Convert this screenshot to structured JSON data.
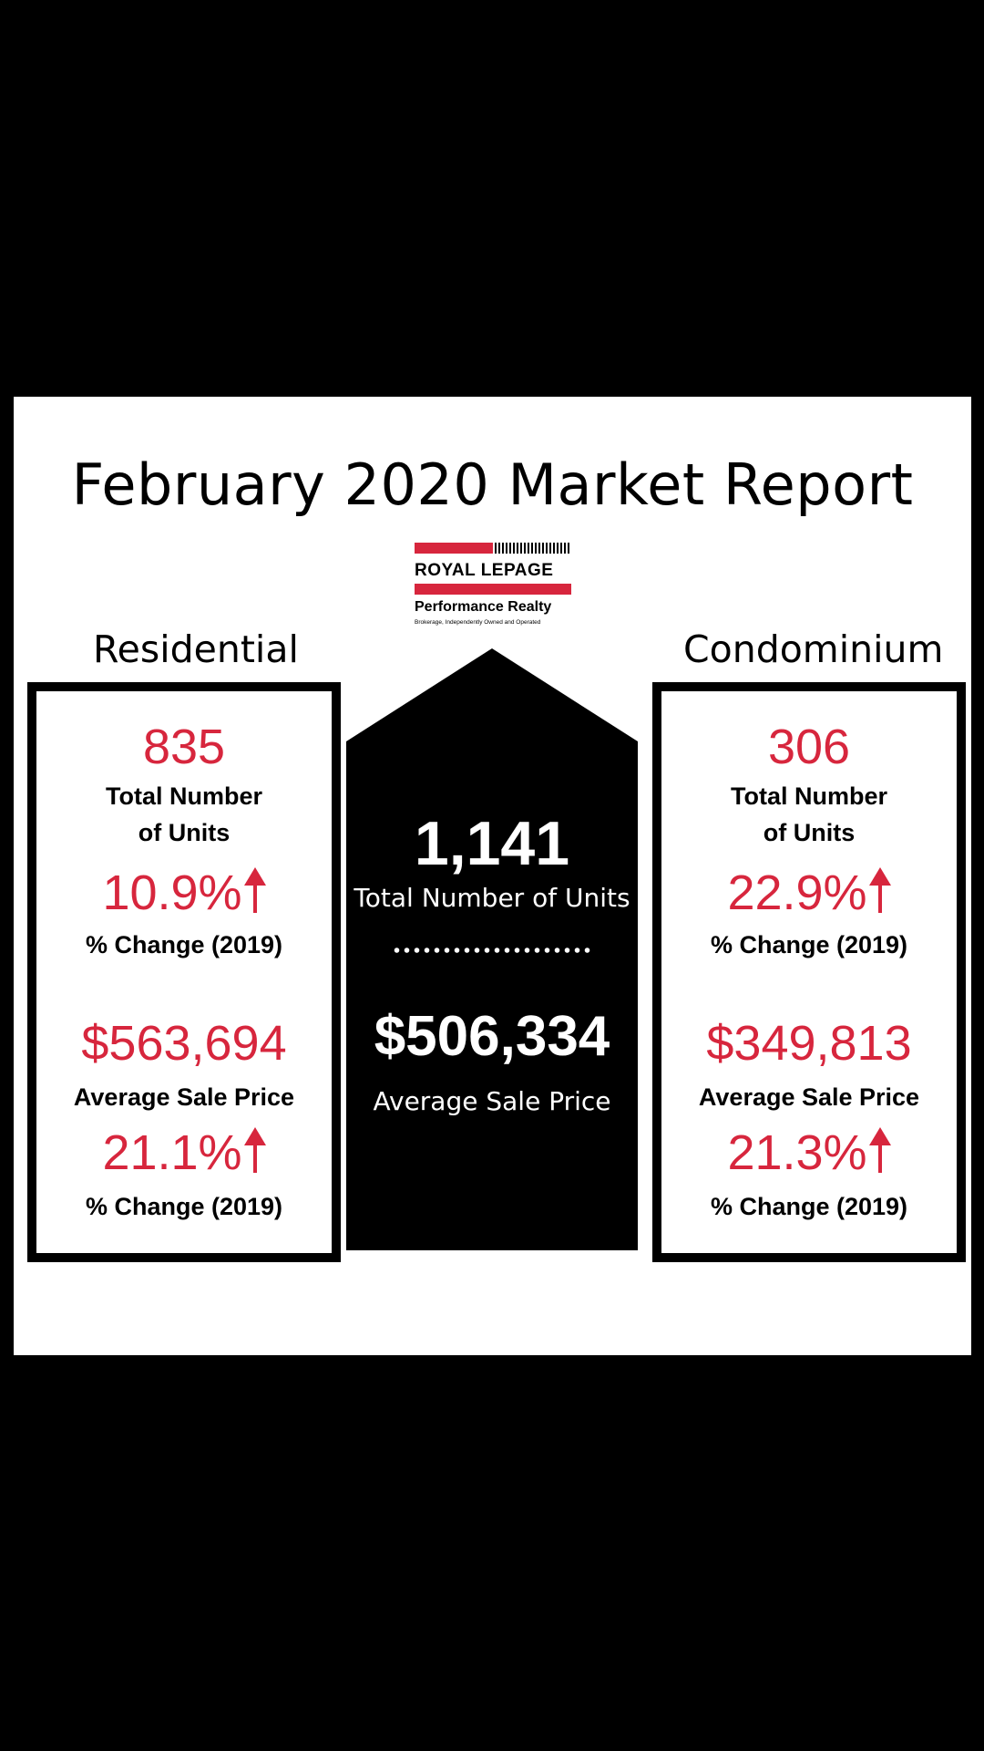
{
  "title": "February 2020 Market Report",
  "logo": {
    "brand": "ROYAL LEPAGE",
    "office": "Performance Realty",
    "tagline": "Brokerage, Independently Owned and Operated"
  },
  "residential": {
    "heading": "Residential",
    "units_value": "835",
    "units_label_line1": "Total Number",
    "units_label_line2": "of Units",
    "units_change": "10.9%",
    "units_change_label": "% Change (2019)",
    "price_value": "$563,694",
    "price_label": "Average Sale Price",
    "price_change": "21.1%",
    "price_change_label": "% Change (2019)"
  },
  "total": {
    "units_value": "1,141",
    "units_label": "Total Number of Units",
    "price_value": "$506,334",
    "price_label": "Average Sale Price"
  },
  "condominium": {
    "heading": "Condominium",
    "units_value": "306",
    "units_label_line1": "Total Number",
    "units_label_line2": "of Units",
    "units_change": "22.9%",
    "units_change_label": "% Change (2019)",
    "price_value": "$349,813",
    "price_label": "Average Sale Price",
    "price_change": "21.3%",
    "price_change_label": "% Change (2019)"
  },
  "colors": {
    "accent": "#d7263d",
    "background": "#000000",
    "card": "#ffffff"
  },
  "icons": {
    "change_indicator": "arrow-up-icon"
  }
}
